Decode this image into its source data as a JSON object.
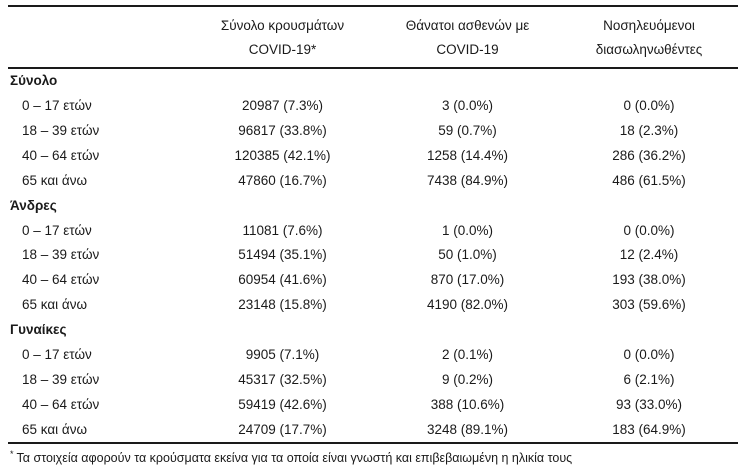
{
  "table": {
    "headers": [
      {
        "line1": "Σύνολο κρουσμάτων",
        "line2": "COVID-19*"
      },
      {
        "line1": "Θάνατοι ασθενών με",
        "line2": "COVID-19"
      },
      {
        "line1": "Νοσηλευόμενοι",
        "line2": "διασωληνωθέντες"
      }
    ],
    "sections": [
      {
        "title": "Σύνολο",
        "rows": [
          {
            "label": "0 – 17 ετών",
            "values": [
              "20987 (7.3%)",
              "3 (0.0%)",
              "0 (0.0%)"
            ]
          },
          {
            "label": "18 – 39 ετών",
            "values": [
              "96817 (33.8%)",
              "59 (0.7%)",
              "18 (2.3%)"
            ]
          },
          {
            "label": "40 – 64 ετών",
            "values": [
              "120385 (42.1%)",
              "1258 (14.4%)",
              "286 (36.2%)"
            ]
          },
          {
            "label": "65 και άνω",
            "values": [
              "47860 (16.7%)",
              "7438 (84.9%)",
              "486 (61.5%)"
            ]
          }
        ]
      },
      {
        "title": "Άνδρες",
        "rows": [
          {
            "label": "0 – 17 ετών",
            "values": [
              "11081 (7.6%)",
              "1 (0.0%)",
              "0 (0.0%)"
            ]
          },
          {
            "label": "18 – 39 ετών",
            "values": [
              "51494 (35.1%)",
              "50 (1.0%)",
              "12 (2.4%)"
            ]
          },
          {
            "label": "40 – 64 ετών",
            "values": [
              "60954 (41.6%)",
              "870 (17.0%)",
              "193 (38.0%)"
            ]
          },
          {
            "label": "65 και άνω",
            "values": [
              "23148 (15.8%)",
              "4190 (82.0%)",
              "303 (59.6%)"
            ]
          }
        ]
      },
      {
        "title": "Γυναίκες",
        "rows": [
          {
            "label": "0 – 17 ετών",
            "values": [
              "9905 (7.1%)",
              "2 (0.1%)",
              "0 (0.0%)"
            ]
          },
          {
            "label": "18 – 39 ετών",
            "values": [
              "45317 (32.5%)",
              "9 (0.2%)",
              "6 (2.1%)"
            ]
          },
          {
            "label": "40 – 64 ετών",
            "values": [
              "59419 (42.6%)",
              "388 (10.6%)",
              "93 (33.0%)"
            ]
          },
          {
            "label": "65 και άνω",
            "values": [
              "24709 (17.7%)",
              "3248 (89.1%)",
              "183 (64.9%)"
            ]
          }
        ]
      }
    ],
    "footnote_marker": "*",
    "footnote": "Τα στοιχεία αφορούν τα κρούσματα εκείνα για τα οποία είναι γνωστή και επιβεβαιωμένη η ηλικία τους"
  },
  "colors": {
    "text": "#1a1a1a",
    "rule": "#1a1a1a",
    "background": "#ffffff"
  }
}
